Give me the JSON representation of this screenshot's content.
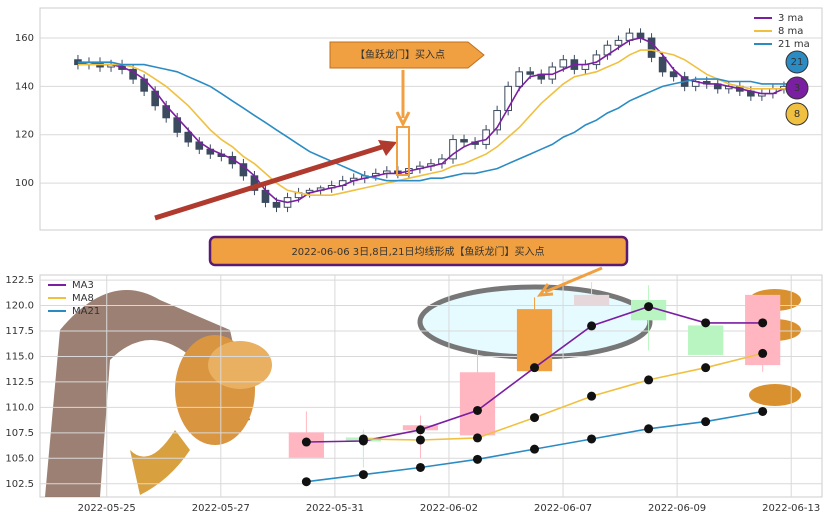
{
  "chart_data": [
    {
      "type": "candlestick",
      "open": [
        151,
        149,
        150,
        148,
        149,
        147,
        143,
        138,
        132,
        127,
        121,
        117,
        114,
        112,
        111,
        108,
        103,
        97,
        92,
        90,
        94,
        96,
        97,
        98,
        99,
        101,
        102,
        103,
        104,
        105,
        104,
        106,
        107,
        108,
        110,
        118,
        117,
        116,
        122,
        130,
        140,
        146,
        145,
        143,
        148,
        151,
        147,
        149,
        153,
        157,
        159,
        162,
        160,
        152,
        146,
        144,
        140,
        142,
        141,
        139,
        140,
        138,
        136,
        137,
        139,
        140
      ],
      "high": [
        153,
        152,
        152,
        151,
        151,
        149,
        145,
        140,
        134,
        129,
        123,
        119,
        116,
        114,
        113,
        110,
        105,
        99,
        94,
        96,
        98,
        98,
        99,
        101,
        103,
        104,
        105,
        106,
        107,
        107,
        108,
        109,
        110,
        112,
        120,
        120,
        119,
        124,
        132,
        142,
        148,
        148,
        147,
        150,
        153,
        153,
        151,
        155,
        159,
        161,
        164,
        164,
        162,
        154,
        148,
        146,
        144,
        144,
        143,
        142,
        142,
        140,
        139,
        141,
        142,
        142
      ],
      "low": [
        147,
        147,
        146,
        146,
        145,
        141,
        136,
        130,
        125,
        119,
        115,
        112,
        110,
        109,
        106,
        101,
        95,
        90,
        88,
        88,
        92,
        94,
        95,
        96,
        97,
        99,
        100,
        101,
        102,
        102,
        102,
        104,
        105,
        106,
        108,
        115,
        114,
        114,
        120,
        128,
        138,
        143,
        141,
        141,
        146,
        145,
        145,
        147,
        151,
        155,
        157,
        158,
        150,
        144,
        142,
        138,
        138,
        139,
        137,
        137,
        136,
        134,
        134,
        135,
        137,
        137
      ],
      "close": [
        149,
        150,
        148,
        149,
        147,
        143,
        138,
        132,
        127,
        121,
        117,
        114,
        112,
        111,
        108,
        103,
        97,
        92,
        90,
        94,
        96,
        97,
        98,
        99,
        101,
        102,
        103,
        104,
        105,
        104,
        106,
        107,
        108,
        110,
        118,
        117,
        116,
        122,
        130,
        140,
        146,
        145,
        143,
        148,
        151,
        147,
        149,
        153,
        157,
        159,
        162,
        160,
        152,
        146,
        144,
        140,
        142,
        141,
        139,
        140,
        138,
        136,
        137,
        139,
        140,
        139
      ],
      "up_color": "#ffffff",
      "down_color": "#3b4a5e",
      "edge_color": "#3b4a5e",
      "series": [
        {
          "name": "3 ma",
          "color": "#7b1fa2",
          "values": [
            149,
            150,
            149,
            149,
            148,
            146,
            143,
            138,
            132,
            127,
            122,
            117,
            114,
            112,
            110,
            107,
            103,
            97,
            93,
            92,
            93,
            96,
            97,
            98,
            99,
            101,
            102,
            103,
            104,
            104,
            105,
            106,
            107,
            108,
            112,
            115,
            117,
            118,
            123,
            131,
            139,
            144,
            145,
            145,
            147,
            149,
            149,
            150,
            153,
            156,
            159,
            160,
            158,
            153,
            147,
            143,
            142,
            141,
            141,
            140,
            139,
            138,
            137,
            137,
            139,
            139
          ]
        },
        {
          "name": "8 ma",
          "color": "#f0c040",
          "values": [
            149,
            149,
            149,
            149,
            149,
            148,
            146,
            143,
            140,
            136,
            132,
            127,
            122,
            118,
            115,
            111,
            108,
            104,
            100,
            97,
            96,
            95,
            95,
            95,
            96,
            97,
            98,
            99,
            100,
            101,
            102,
            103,
            104,
            105,
            107,
            108,
            110,
            112,
            115,
            119,
            123,
            128,
            133,
            137,
            141,
            144,
            145,
            146,
            148,
            150,
            153,
            155,
            155,
            154,
            153,
            151,
            148,
            145,
            143,
            141,
            140,
            139,
            139,
            139,
            139,
            139
          ]
        },
        {
          "name": "21 ma",
          "color": "#2b8cc4",
          "values": [
            150,
            150,
            150,
            150,
            149,
            149,
            149,
            148,
            147,
            146,
            144,
            142,
            140,
            137,
            134,
            131,
            128,
            125,
            122,
            119,
            116,
            113,
            111,
            109,
            107,
            105,
            103,
            102,
            101,
            101,
            101,
            101,
            102,
            102,
            103,
            104,
            104,
            105,
            106,
            108,
            110,
            112,
            114,
            116,
            119,
            121,
            124,
            126,
            129,
            131,
            134,
            136,
            138,
            140,
            141,
            142,
            143,
            143,
            143,
            142,
            142,
            142,
            141,
            141,
            141,
            141
          ]
        }
      ],
      "xlim": [
        -3.44,
        67.45
      ],
      "ylim": [
        80.6,
        172.4
      ],
      "yticks": [
        100,
        120,
        140,
        160
      ],
      "grid": true,
      "legend": "upper right",
      "annotation": "【鱼跃龙门】买入点",
      "badges": [
        {
          "text": "21",
          "color": "#2b8cc4"
        },
        {
          "text": "3",
          "color": "#7b1fa2"
        },
        {
          "text": "8",
          "color": "#f0c040"
        }
      ]
    },
    {
      "type": "candlestick",
      "annotation": "2022-06-06 3日,8日,21日均线形成【鱼跃龙门】买入点",
      "x": [
        3.5,
        4.5,
        5.5,
        6.5,
        7.5,
        8.5,
        9.5,
        10.5,
        11.5
      ],
      "open": [
        105.1,
        107.0,
        107.8,
        107.3,
        113.6,
        120.0,
        120.5,
        118.0,
        114.2
      ],
      "high": [
        109.6,
        107.8,
        109.2,
        115.6,
        120.8,
        122.3,
        122.0,
        118.0,
        121.0
      ],
      "low": [
        105.1,
        104.1,
        105.0,
        107.3,
        113.6,
        120.0,
        115.6,
        115.2,
        113.5
      ],
      "close": [
        107.5,
        106.7,
        108.2,
        113.4,
        119.6,
        121.0,
        118.6,
        115.2,
        121.0
      ],
      "colors": [
        "#ffb6c1",
        "#b8f5c0",
        "#ffb6c1",
        "#ffb6c1",
        "#f0a040",
        "#e6d8da",
        "#b8f5c0",
        "#b8f5c0",
        "#ffb6c1"
      ],
      "series": [
        {
          "name": "MA3",
          "color": "#7b1fa2",
          "values": [
            106.6,
            106.7,
            107.8,
            109.7,
            113.9,
            118.0,
            119.9,
            118.3,
            118.3
          ]
        },
        {
          "name": "MA8",
          "color": "#f0c040",
          "values": [
            null,
            106.9,
            106.8,
            107.0,
            109.0,
            111.1,
            112.7,
            113.9,
            115.3
          ]
        },
        {
          "name": "MA21",
          "color": "#2b8cc4",
          "values": [
            102.7,
            103.4,
            104.1,
            104.9,
            105.9,
            106.9,
            107.9,
            108.6,
            109.6
          ]
        }
      ],
      "markers": true,
      "xlim": [
        -1.17,
        12.54
      ],
      "ylim": [
        101.2,
        123.0
      ],
      "xticks": [
        {
          "value": 0,
          "label": "2022-05-25"
        },
        {
          "value": 2,
          "label": "2022-05-27"
        },
        {
          "value": 4,
          "label": "2022-05-31"
        },
        {
          "value": 6,
          "label": "2022-06-02"
        },
        {
          "value": 8,
          "label": "2022-06-07"
        },
        {
          "value": 10,
          "label": "2022-06-09"
        },
        {
          "value": 12,
          "label": "2022-06-13"
        }
      ],
      "yticks": [
        102.5,
        {
          "value": 105,
          "label": "105.0"
        },
        107.5,
        {
          "value": 110,
          "label": "110.0"
        },
        112.5,
        {
          "value": 115,
          "label": "115.0"
        },
        117.5,
        {
          "value": 120,
          "label": "120.0"
        },
        122.5
      ],
      "grid": true,
      "legend": "upper left"
    }
  ]
}
